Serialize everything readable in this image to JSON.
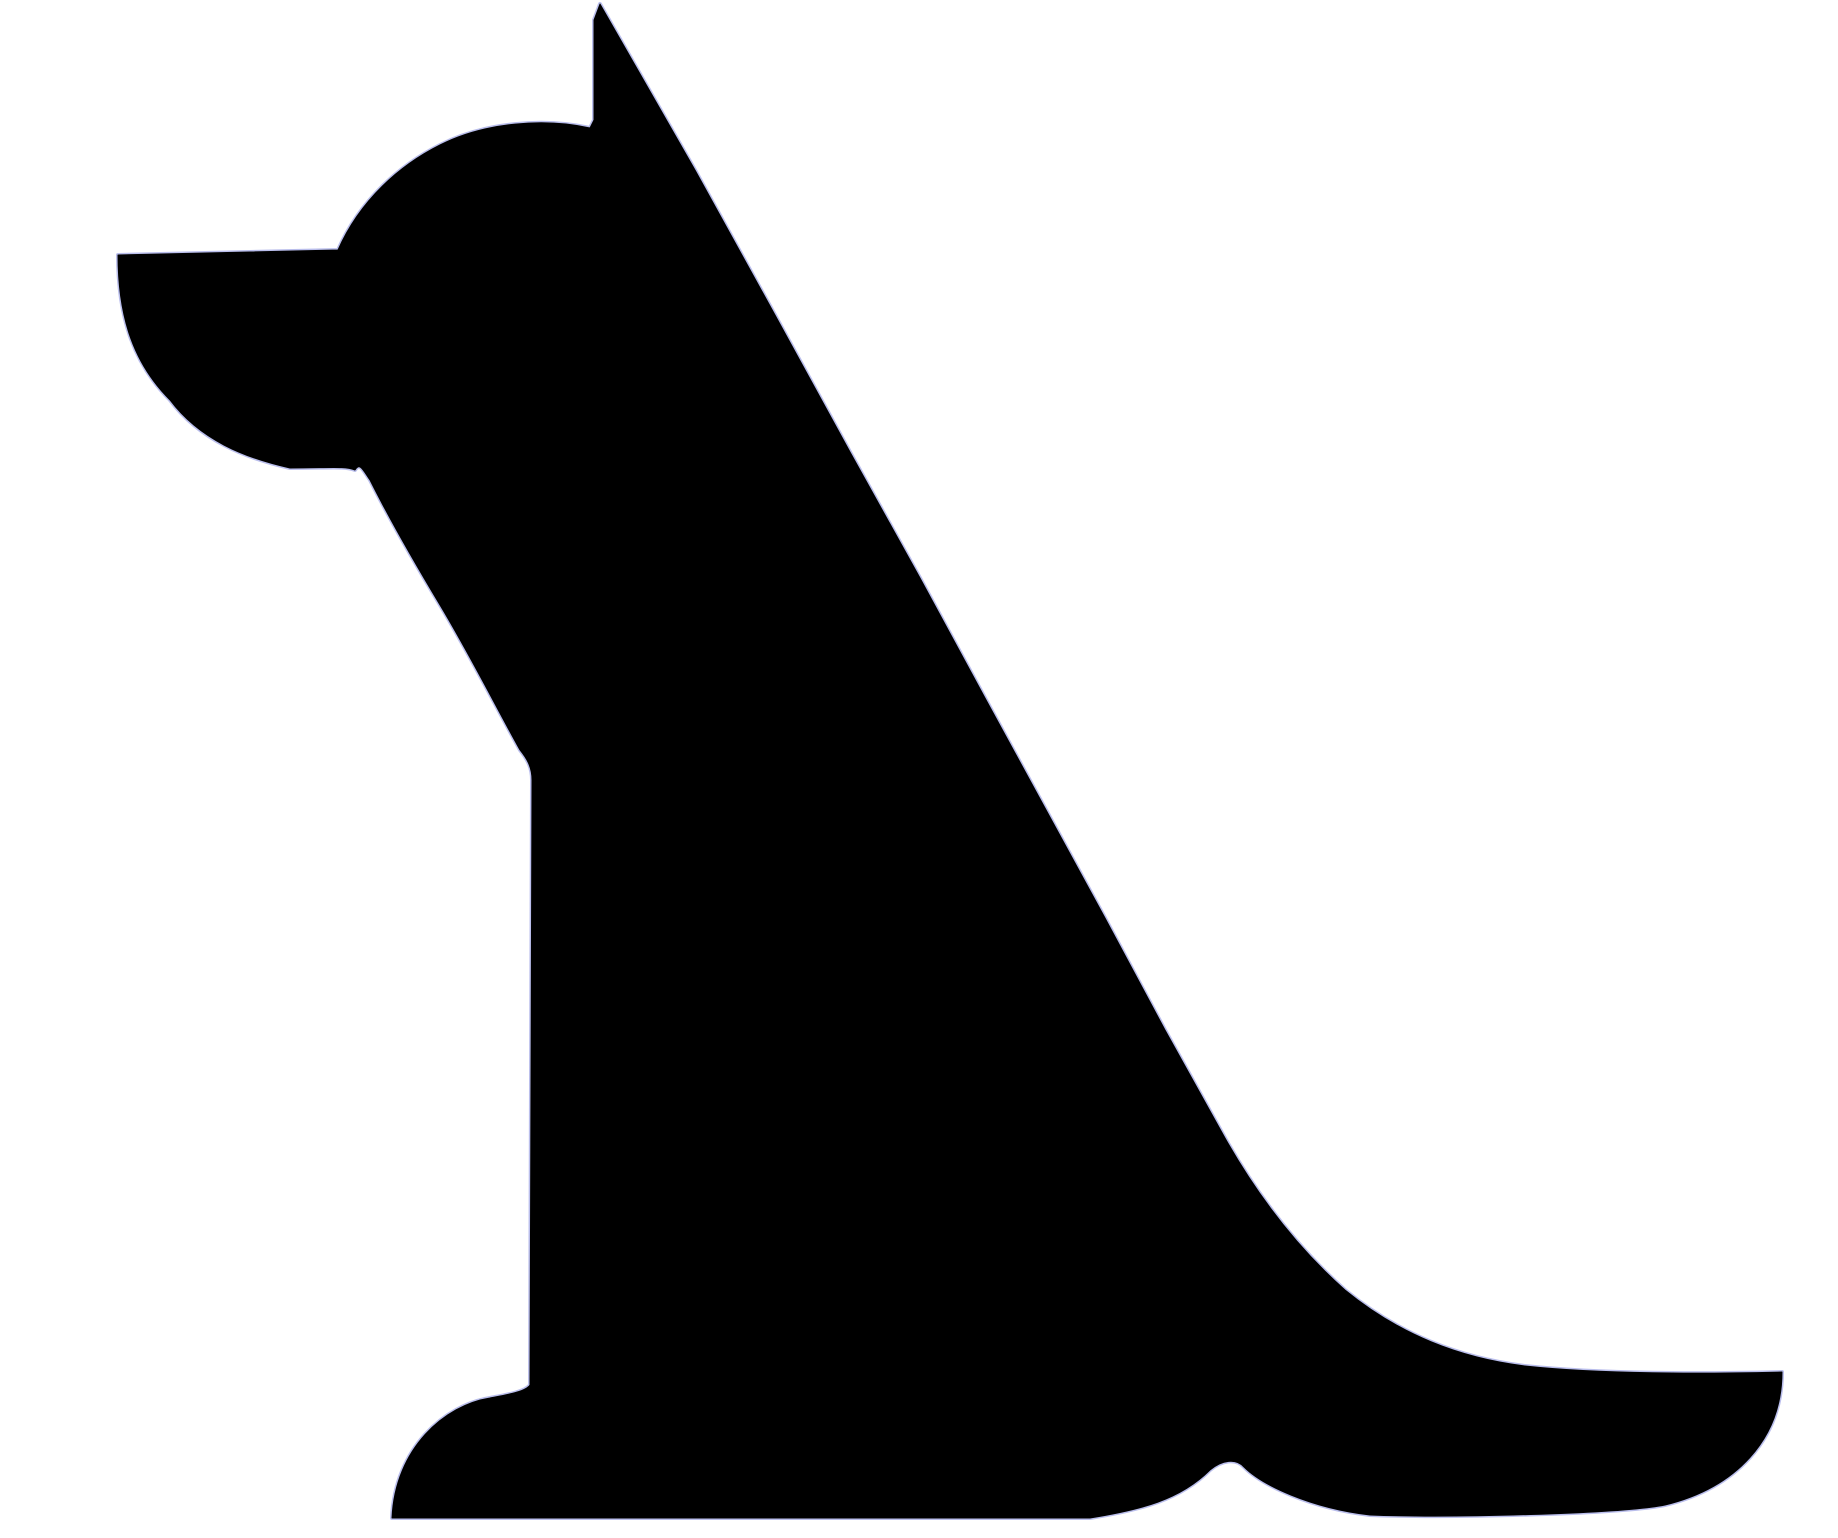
{
  "image": {
    "subject": "dog-silhouette-icon",
    "colors": {
      "background": "#ffffff",
      "silhouette": "#000000",
      "edge_fringe": "#3a45c8"
    }
  }
}
